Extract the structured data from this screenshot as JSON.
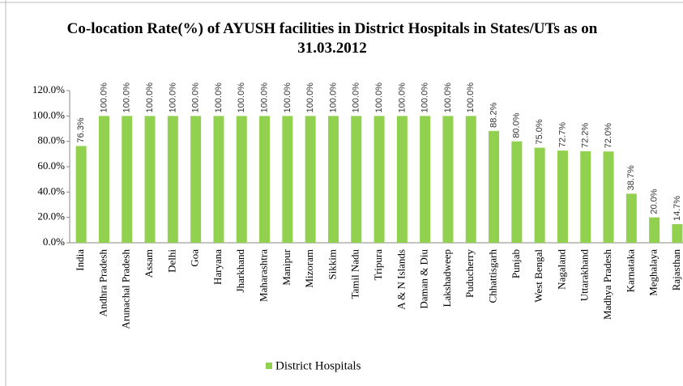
{
  "chart_data": {
    "type": "bar",
    "title": "Co-location Rate(%) of AYUSH facilities in District Hospitals in States/UTs as on 31.03.2012",
    "categories": [
      "India",
      "Andhra Pradesh",
      "Arunachal Pradesh",
      "Assam",
      "Delhi",
      "Goa",
      "Haryana",
      "Jharkhand",
      "Maharashtra",
      "Manipur",
      "Mizoram",
      "Sikkim",
      "Tamil Nadu",
      "Tripura",
      "A & N Islands",
      "Daman & Diu",
      "Lakshadweep",
      "Puducherry",
      "Chhattisgarh",
      "Punjab",
      "West Bengal",
      "Nagaland",
      "Uttarakhand",
      "Madhya Pradesh",
      "Karnataka",
      "Meghalaya",
      "Rajasthan"
    ],
    "series": [
      {
        "name": "District Hospitals",
        "color": "#92d050",
        "values": [
          76.3,
          100,
          100,
          100,
          100,
          100,
          100,
          100,
          100,
          100,
          100,
          100,
          100,
          100,
          100,
          100,
          100,
          100,
          88.2,
          80,
          75,
          72.7,
          72.2,
          72,
          38.7,
          20,
          14.7
        ],
        "value_labels": [
          "76.3%",
          "100.0%",
          "100.0%",
          "100.0%",
          "100.0%",
          "100.0%",
          "100.0%",
          "100.0%",
          "100.0%",
          "100.0%",
          "100.0%",
          "100.0%",
          "100.0%",
          "100.0%",
          "100.0%",
          "100.0%",
          "100.0%",
          "100.0%",
          "88.2%",
          "80.0%",
          "75.0%",
          "72.7%",
          "72.2%",
          "72.0%",
          "38.7%",
          "20.0%",
          "14.7%"
        ]
      }
    ],
    "ylim": [
      0,
      120
    ],
    "yticks": [
      {
        "value": 0,
        "label": "0.0%"
      },
      {
        "value": 20,
        "label": "20.0%"
      },
      {
        "value": 40,
        "label": "40.0%"
      },
      {
        "value": 60,
        "label": "60.0%"
      },
      {
        "value": 80,
        "label": "80.0%"
      },
      {
        "value": 100,
        "label": "100.0%"
      },
      {
        "value": 120,
        "label": "120.0%"
      }
    ],
    "grid": false,
    "legend": "bottom"
  }
}
